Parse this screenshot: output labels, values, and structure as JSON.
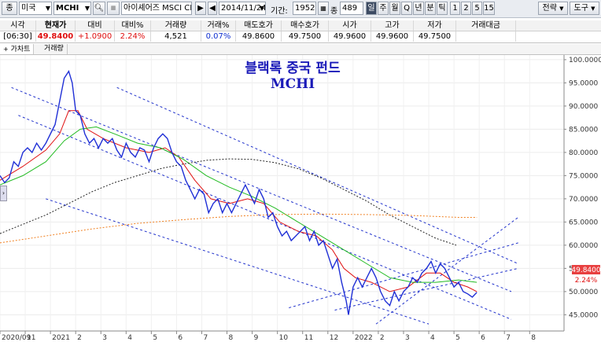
{
  "toolbar": {
    "type_label": "종",
    "market": "미국",
    "symbol": "MCHI",
    "name": "아이셰어즈 MSCI CN",
    "date": "2014/11/24",
    "period_label": "기간:",
    "period_value": "1952",
    "count_label": "종",
    "count_value": "489",
    "interval_buttons": [
      "일",
      "주",
      "월",
      "Q",
      "년",
      "분",
      "틱",
      "1",
      "2",
      "5",
      "15"
    ],
    "strategy_label": "전략",
    "tools_label": "도구"
  },
  "quote": {
    "headers": [
      "시각",
      "현재가",
      "대비",
      "대비%",
      "거래량",
      "거래%",
      "매도호가",
      "매수호가",
      "시가",
      "고가",
      "저가",
      "거래대금"
    ],
    "values": [
      "[06:30]",
      "49.8400",
      "+1.0900",
      "2.24%",
      "4,521",
      "0.07%",
      "49.8600",
      "49.7500",
      "49.9600",
      "49.9600",
      "49.7500",
      ""
    ]
  },
  "tabs": [
    "가차트",
    "거래량"
  ],
  "chart_data": {
    "type": "line",
    "title": "블랙록 중국 펀드",
    "subtitle": "MCHI",
    "ylim": [
      41.5,
      101
    ],
    "yticks": [
      45,
      50,
      55,
      60,
      65,
      70,
      75,
      80,
      85,
      90,
      95,
      100
    ],
    "ytick_labels": [
      "45.0000",
      "50.0000",
      "55.0000",
      "60.0000",
      "65.0000",
      "70.0000",
      "75.0000",
      "80.0000",
      "85.0000",
      "90.0000",
      "95.0000",
      "100.0000"
    ],
    "xtick_labels": [
      "2020/09",
      "11",
      "2021",
      "2",
      "3",
      "4",
      "5",
      "6",
      "7",
      "8",
      "9",
      "10",
      "11",
      "12",
      "2022",
      "2",
      "3",
      "4",
      "5",
      "6",
      "7",
      "8"
    ],
    "xtick_positions": [
      0,
      1.1,
      2.2,
      3.3,
      4.4,
      5.5,
      6.6,
      7.7,
      8.8,
      9.9,
      11,
      12.1,
      13.2,
      14.3,
      15.4,
      16.5,
      17.6,
      18.7,
      19.8,
      20.9,
      22,
      23.1
    ],
    "x_range": [
      0,
      24.6
    ],
    "last_price_label": "49.8400",
    "last_change_label": "2.24%",
    "colors": {
      "price": "#1f2fd6",
      "ma_short": "#e01010",
      "ma_mid": "#22bb22",
      "ma_long": "#222222",
      "ma_longest": "#f08020",
      "channel": "#2233cc",
      "last_box": "#e84040"
    },
    "series": [
      {
        "role": "price",
        "values": [
          [
            0,
            75
          ],
          [
            0.2,
            73.5
          ],
          [
            0.4,
            74.5
          ],
          [
            0.6,
            78
          ],
          [
            0.8,
            77
          ],
          [
            1,
            80
          ],
          [
            1.2,
            81
          ],
          [
            1.4,
            80
          ],
          [
            1.6,
            82
          ],
          [
            1.8,
            80.5
          ],
          [
            2,
            82
          ],
          [
            2.2,
            84
          ],
          [
            2.4,
            86
          ],
          [
            2.6,
            91
          ],
          [
            2.8,
            96
          ],
          [
            3.0,
            97.5
          ],
          [
            3.15,
            95
          ],
          [
            3.3,
            89
          ],
          [
            3.5,
            88
          ],
          [
            3.7,
            84
          ],
          [
            3.9,
            82
          ],
          [
            4.1,
            83
          ],
          [
            4.3,
            81
          ],
          [
            4.5,
            83
          ],
          [
            4.7,
            82
          ],
          [
            4.9,
            83
          ],
          [
            5.1,
            80.5
          ],
          [
            5.3,
            79
          ],
          [
            5.5,
            82
          ],
          [
            5.7,
            80
          ],
          [
            5.9,
            79
          ],
          [
            6.1,
            81
          ],
          [
            6.3,
            80.5
          ],
          [
            6.5,
            78
          ],
          [
            6.7,
            81
          ],
          [
            6.9,
            83
          ],
          [
            7.1,
            84
          ],
          [
            7.3,
            83
          ],
          [
            7.5,
            80
          ],
          [
            7.7,
            78
          ],
          [
            7.9,
            77
          ],
          [
            8.1,
            74
          ],
          [
            8.3,
            72
          ],
          [
            8.5,
            70
          ],
          [
            8.7,
            72
          ],
          [
            8.9,
            71
          ],
          [
            9.1,
            67
          ],
          [
            9.3,
            69
          ],
          [
            9.5,
            70
          ],
          [
            9.7,
            67
          ],
          [
            9.9,
            69
          ],
          [
            10.1,
            67
          ],
          [
            10.3,
            69
          ],
          [
            10.5,
            71
          ],
          [
            10.7,
            73
          ],
          [
            10.9,
            71
          ],
          [
            11.1,
            69
          ],
          [
            11.3,
            72
          ],
          [
            11.5,
            70
          ],
          [
            11.7,
            66
          ],
          [
            11.9,
            67
          ],
          [
            12.1,
            64
          ],
          [
            12.3,
            62
          ],
          [
            12.5,
            63
          ],
          [
            12.7,
            61
          ],
          [
            12.9,
            62
          ],
          [
            13.1,
            63
          ],
          [
            13.3,
            64
          ],
          [
            13.5,
            61
          ],
          [
            13.7,
            63
          ],
          [
            13.9,
            60
          ],
          [
            14.1,
            61
          ],
          [
            14.3,
            58
          ],
          [
            14.5,
            55
          ],
          [
            14.7,
            57
          ],
          [
            14.9,
            52
          ],
          [
            15.1,
            48
          ],
          [
            15.2,
            45
          ],
          [
            15.4,
            51
          ],
          [
            15.6,
            53
          ],
          [
            15.8,
            51
          ],
          [
            16.0,
            53
          ],
          [
            16.2,
            55
          ],
          [
            16.4,
            53
          ],
          [
            16.6,
            50
          ],
          [
            16.8,
            48
          ],
          [
            17.0,
            47
          ],
          [
            17.2,
            50
          ],
          [
            17.4,
            48
          ],
          [
            17.6,
            50
          ],
          [
            17.8,
            51
          ],
          [
            18.0,
            53
          ],
          [
            18.2,
            52
          ],
          [
            18.4,
            54
          ],
          [
            18.6,
            55
          ],
          [
            18.8,
            56.5
          ],
          [
            19.0,
            54
          ],
          [
            19.2,
            56
          ],
          [
            19.4,
            55
          ],
          [
            19.6,
            53
          ],
          [
            19.8,
            51
          ],
          [
            20.0,
            52
          ],
          [
            20.2,
            50
          ],
          [
            20.4,
            49.5
          ],
          [
            20.6,
            48.8
          ],
          [
            20.8,
            49.84
          ]
        ]
      },
      {
        "role": "ma_short",
        "values": [
          [
            0,
            74
          ],
          [
            1,
            77
          ],
          [
            2,
            80.5
          ],
          [
            2.6,
            84
          ],
          [
            3.0,
            89
          ],
          [
            3.4,
            89
          ],
          [
            3.8,
            85
          ],
          [
            4.5,
            83
          ],
          [
            5.5,
            81
          ],
          [
            6.5,
            80
          ],
          [
            7.2,
            81
          ],
          [
            7.8,
            79
          ],
          [
            8.5,
            74
          ],
          [
            9.2,
            70
          ],
          [
            10.0,
            69
          ],
          [
            10.8,
            70
          ],
          [
            11.5,
            69
          ],
          [
            12.2,
            65
          ],
          [
            13.0,
            63
          ],
          [
            13.8,
            62
          ],
          [
            14.5,
            59
          ],
          [
            15.0,
            55
          ],
          [
            15.5,
            53
          ],
          [
            16.2,
            52
          ],
          [
            17.0,
            50
          ],
          [
            17.8,
            51
          ],
          [
            18.6,
            54
          ],
          [
            19.2,
            54
          ],
          [
            19.8,
            52
          ],
          [
            20.4,
            51
          ],
          [
            20.8,
            50
          ]
        ]
      },
      {
        "role": "ma_mid",
        "values": [
          [
            0,
            73
          ],
          [
            1,
            75
          ],
          [
            2,
            78
          ],
          [
            2.8,
            82.5
          ],
          [
            3.5,
            85
          ],
          [
            4.2,
            85.5
          ],
          [
            5.0,
            84
          ],
          [
            6.0,
            82
          ],
          [
            7.0,
            81
          ],
          [
            8.0,
            78.5
          ],
          [
            9.0,
            75
          ],
          [
            10.0,
            72.5
          ],
          [
            11.0,
            70.5
          ],
          [
            12.0,
            68
          ],
          [
            13.0,
            65
          ],
          [
            14.0,
            62
          ],
          [
            15.0,
            59
          ],
          [
            16.0,
            56
          ],
          [
            17.0,
            53
          ],
          [
            18.0,
            52
          ],
          [
            19.0,
            52
          ],
          [
            20.0,
            52.5
          ],
          [
            20.8,
            52
          ]
        ]
      },
      {
        "role": "ma_long",
        "values": [
          [
            0,
            62.5
          ],
          [
            1,
            64.5
          ],
          [
            2,
            66.5
          ],
          [
            3,
            69
          ],
          [
            4,
            71.5
          ],
          [
            5,
            73.5
          ],
          [
            6,
            75
          ],
          [
            7,
            76.5
          ],
          [
            8,
            77.5
          ],
          [
            9,
            78.3
          ],
          [
            10,
            78.6
          ],
          [
            11,
            78.5
          ],
          [
            12,
            77.8
          ],
          [
            13,
            76.5
          ],
          [
            14,
            74.5
          ],
          [
            15,
            72
          ],
          [
            16,
            69.5
          ],
          [
            17,
            66.5
          ],
          [
            18,
            64
          ],
          [
            19,
            61.5
          ],
          [
            19.9,
            60
          ]
        ]
      },
      {
        "role": "ma_longest",
        "values": [
          [
            0,
            60.5
          ],
          [
            2,
            62
          ],
          [
            4,
            63.5
          ],
          [
            6,
            64.7
          ],
          [
            8,
            65.5
          ],
          [
            10,
            66.2
          ],
          [
            12,
            66.6
          ],
          [
            14,
            66.7
          ],
          [
            16,
            66.6
          ],
          [
            18,
            66.4
          ],
          [
            20,
            66
          ],
          [
            20.8,
            66
          ]
        ]
      }
    ],
    "channels": [
      [
        [
          0.5,
          94
        ],
        [
          22.3,
          50
        ]
      ],
      [
        [
          0.8,
          88
        ],
        [
          22.3,
          44
        ]
      ],
      [
        [
          2.0,
          70
        ],
        [
          18.7,
          43
        ]
      ],
      [
        [
          5.1,
          94
        ],
        [
          22.6,
          56
        ]
      ],
      [
        [
          14.6,
          46
        ],
        [
          22.6,
          55
        ]
      ],
      [
        [
          12.6,
          46.5
        ],
        [
          22.6,
          60.5
        ]
      ],
      [
        [
          16.4,
          43
        ],
        [
          22.6,
          66
        ]
      ]
    ]
  }
}
